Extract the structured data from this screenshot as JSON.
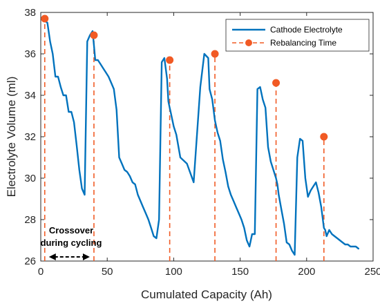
{
  "chart_data": {
    "type": "line",
    "xlabel": "Cumulated Capacity (Ah)",
    "ylabel": "Electrolyte Volume (ml)",
    "xlim": [
      0,
      250
    ],
    "ylim": [
      26,
      38
    ],
    "xticks": [
      0,
      50,
      100,
      150,
      200,
      250
    ],
    "yticks": [
      26,
      28,
      30,
      32,
      34,
      36,
      38
    ],
    "grid": false,
    "legend_position": "top-right",
    "colors": {
      "series": "#0072BD",
      "marker": "#F15A24",
      "axis": "#262626"
    },
    "series": [
      {
        "name": "Cathode Electrolyte",
        "kind": "line",
        "x": [
          3,
          5,
          7,
          9,
          11,
          13,
          15,
          17,
          19,
          21,
          23,
          25,
          27,
          29,
          31,
          33,
          35,
          37,
          39,
          40,
          41,
          43,
          45,
          47,
          49,
          51,
          53,
          55,
          57,
          59,
          61,
          63,
          65,
          67,
          69,
          71,
          73,
          75,
          77,
          79,
          81,
          83,
          85,
          87,
          89,
          91,
          93,
          95,
          96,
          97,
          98,
          99,
          100,
          102,
          105,
          110,
          115,
          120,
          123,
          126,
          127,
          129,
          130,
          131,
          133,
          135,
          137,
          139,
          141,
          143,
          145,
          147,
          149,
          151,
          153,
          155,
          157,
          159,
          161,
          163,
          165,
          167,
          169,
          171,
          173,
          175,
          177,
          178,
          179,
          181,
          183,
          185,
          187,
          189,
          191,
          193,
          195,
          197,
          199,
          201,
          203,
          205,
          207,
          209,
          211,
          213,
          214,
          215,
          217,
          219,
          221,
          223,
          225,
          227,
          229,
          231,
          233,
          235,
          237,
          239
        ],
        "y": [
          37.6,
          37.5,
          36.6,
          36.0,
          34.9,
          34.9,
          34.4,
          34.0,
          34.0,
          33.2,
          33.2,
          32.7,
          31.6,
          30.4,
          29.5,
          29.2,
          36.6,
          36.9,
          37.1,
          36.4,
          35.7,
          35.7,
          35.5,
          35.3,
          35.1,
          34.9,
          34.6,
          34.3,
          33.3,
          31.0,
          30.7,
          30.4,
          30.3,
          30.1,
          29.8,
          29.7,
          29.2,
          28.9,
          28.6,
          28.3,
          28.0,
          27.6,
          27.2,
          27.1,
          28.0,
          35.6,
          35.8,
          34.8,
          33.7,
          33.4,
          33.1,
          32.8,
          32.5,
          32.1,
          31.0,
          30.7,
          29.8,
          34.4,
          36.0,
          35.8,
          34.3,
          33.8,
          33.3,
          32.8,
          32.2,
          31.8,
          30.9,
          30.3,
          29.6,
          29.2,
          28.9,
          28.6,
          28.3,
          28.0,
          27.6,
          27.0,
          26.7,
          27.3,
          27.3,
          34.3,
          34.4,
          33.8,
          33.4,
          31.5,
          30.8,
          30.4,
          30.0,
          29.7,
          29.2,
          28.5,
          27.8,
          26.9,
          26.8,
          26.5,
          26.3,
          31.0,
          31.9,
          31.8,
          30.0,
          29.1,
          29.4,
          29.6,
          29.8,
          29.3,
          28.6,
          27.6,
          27.5,
          27.2,
          27.5,
          27.3,
          27.2,
          27.1,
          27.0,
          26.9,
          26.8,
          26.8,
          26.7,
          26.7,
          26.7,
          26.6
        ],
        "note": "Series traced as a single polyline in the original; y values read off the curve."
      },
      {
        "name": "Rebalancing Time",
        "kind": "vertical-markers",
        "x": [
          3,
          40,
          97,
          131,
          177,
          213
        ],
        "y": [
          37.7,
          36.9,
          35.7,
          36.0,
          34.6,
          32.0
        ]
      }
    ],
    "annotations": [
      {
        "text_line1": "Crossover",
        "text_line2": "during cycling",
        "arrow": "double-headed",
        "x_from": 3,
        "x_to": 40
      }
    ]
  }
}
